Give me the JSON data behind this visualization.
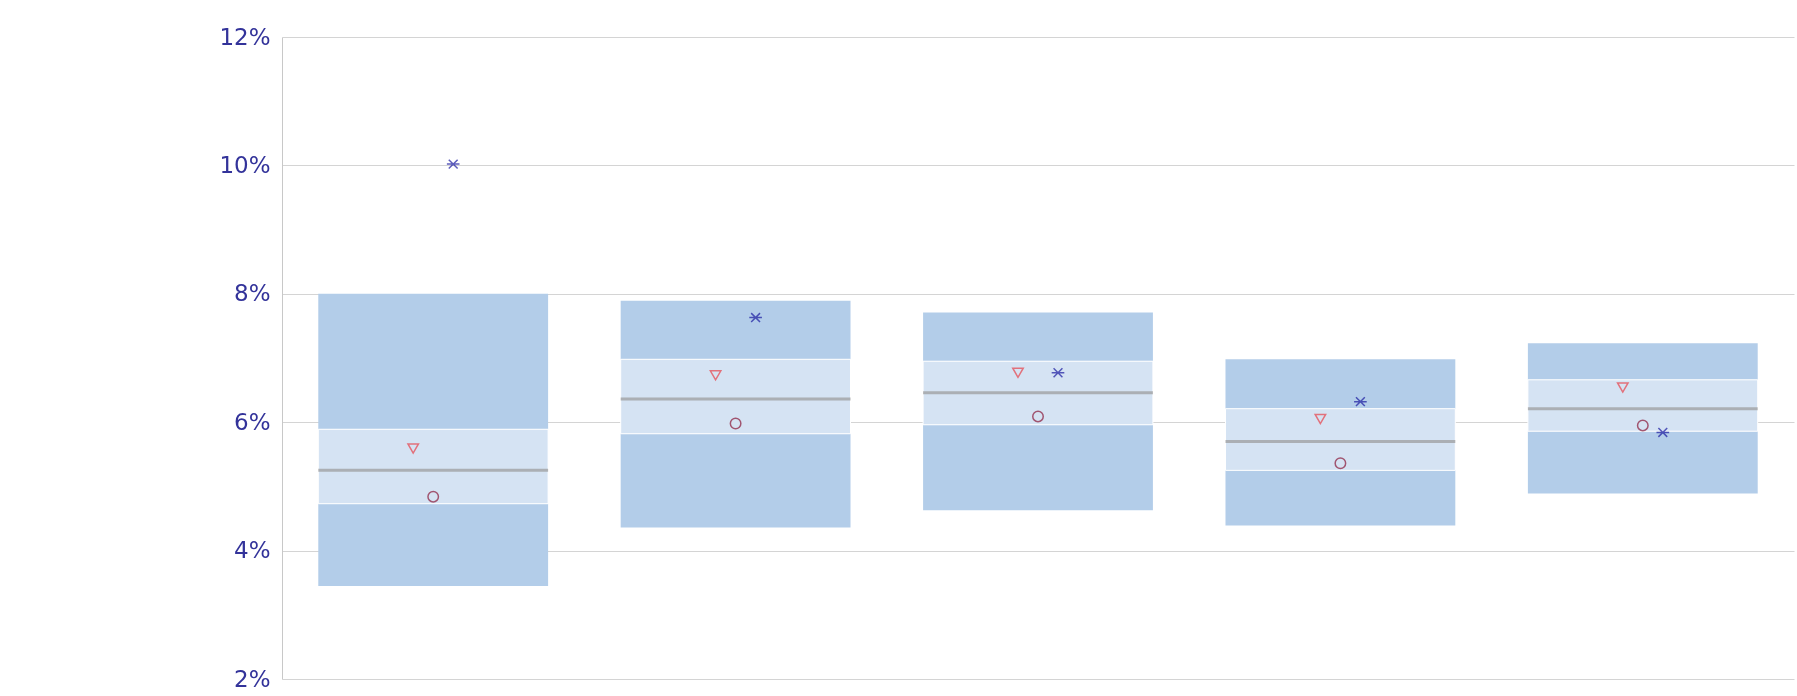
{
  "chart_data": {
    "type": "box",
    "categories": [
      null,
      null,
      null,
      null,
      null
    ],
    "ylim": [
      2,
      12
    ],
    "yticks": [
      {
        "value": 2,
        "label": "2%"
      },
      {
        "value": 4,
        "label": "4%"
      },
      {
        "value": 6,
        "label": "6%"
      },
      {
        "value": 8,
        "label": "8%"
      },
      {
        "value": 10,
        "label": "10%"
      },
      {
        "value": 12,
        "label": "12%"
      }
    ],
    "grid": "y",
    "tick_labels": "y",
    "series": [
      {
        "color": "#d5e3f3",
        "boxes": [
          {
            "low": 3.45,
            "q1": 4.73,
            "median": 5.25,
            "q3": 5.89,
            "high": 8.0
          },
          {
            "low": 4.36,
            "q1": 5.82,
            "median": 6.36,
            "q3": 6.98,
            "high": 7.89
          },
          {
            "low": 4.63,
            "q1": 5.96,
            "median": 6.46,
            "q3": 6.95,
            "high": 7.71
          },
          {
            "low": 4.39,
            "q1": 5.25,
            "median": 5.7,
            "q3": 6.21,
            "high": 6.98
          },
          {
            "low": 4.89,
            "q1": 5.86,
            "median": 6.21,
            "q3": 6.66,
            "high": 7.23
          }
        ]
      },
      {
        "type": "scatter",
        "marker": "triangle",
        "color": "#e8424a",
        "values": [
          5.59,
          6.73,
          6.77,
          6.05,
          6.54
        ]
      },
      {
        "type": "scatter",
        "marker": "circle",
        "color": "#8b1a3a",
        "values": [
          4.84,
          5.98,
          6.09,
          5.36,
          5.95
        ]
      },
      {
        "type": "scatter",
        "marker": "cross",
        "color": "#1a1aa0",
        "values": [
          10.02,
          7.63,
          6.77,
          6.32,
          5.84
        ]
      }
    ]
  }
}
